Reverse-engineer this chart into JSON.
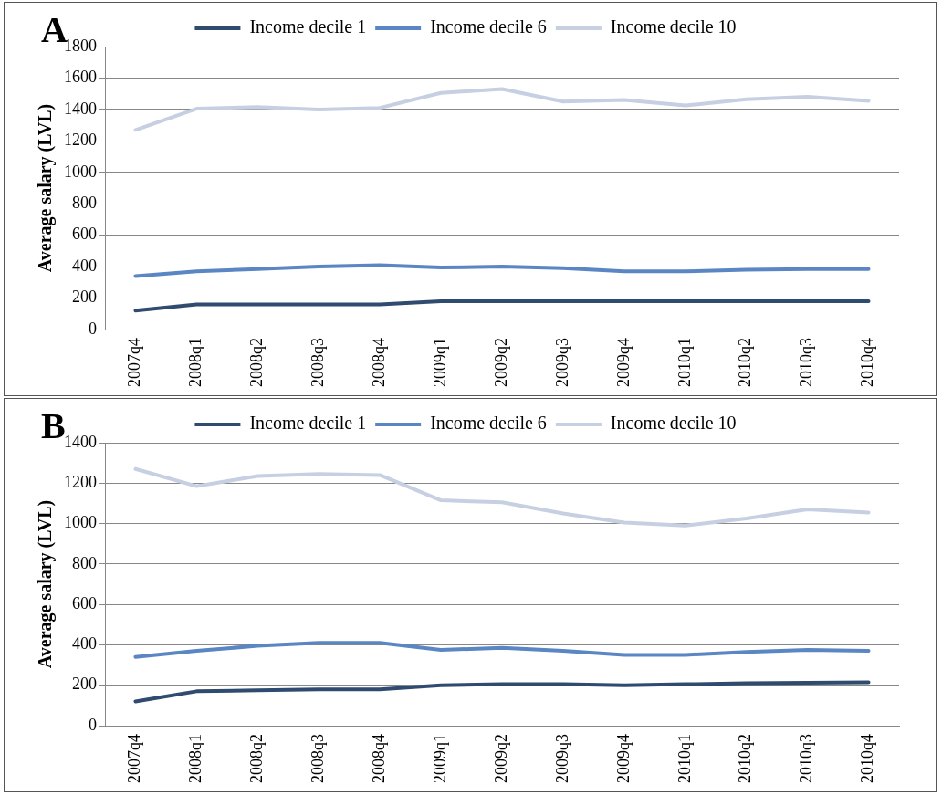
{
  "chart_data": [
    {
      "type": "line",
      "title": "A",
      "ylabel": "Average salary (LVL)",
      "categories": [
        "2007q4",
        "2008q1",
        "2008q2",
        "2008q3",
        "2008q4",
        "2009q1",
        "2009q2",
        "2009q3",
        "2009q4",
        "2010q1",
        "2010q2",
        "2010q3",
        "2010q4"
      ],
      "series": [
        {
          "name": "Income decile 1",
          "color": "#2f4b70",
          "values": [
            120,
            160,
            160,
            160,
            160,
            180,
            180,
            180,
            180,
            180,
            180,
            180,
            180
          ]
        },
        {
          "name": "Income decile 6",
          "color": "#5b86c4",
          "values": [
            340,
            370,
            385,
            400,
            410,
            395,
            400,
            390,
            370,
            370,
            380,
            385,
            385
          ]
        },
        {
          "name": "Income decile 10",
          "color": "#c6d0e2",
          "values": [
            1270,
            1405,
            1415,
            1400,
            1410,
            1505,
            1530,
            1450,
            1460,
            1425,
            1465,
            1480,
            1455
          ]
        }
      ],
      "ylim": [
        0,
        1800
      ],
      "yticks": [
        0,
        200,
        400,
        600,
        800,
        1000,
        1200,
        1400,
        1600,
        1800
      ],
      "grid": "y",
      "legend": "top",
      "marker": "none",
      "line_style": "solid"
    },
    {
      "type": "line",
      "title": "B",
      "ylabel": "Average salary (LVL)",
      "categories": [
        "2007q4",
        "2008q1",
        "2008q2",
        "2008q3",
        "2008q4",
        "2009q1",
        "2009q2",
        "2009q3",
        "2009q4",
        "2010q1",
        "2010q2",
        "2010q3",
        "2010q4"
      ],
      "series": [
        {
          "name": "Income decile 1",
          "color": "#2f4b70",
          "values": [
            120,
            170,
            175,
            180,
            180,
            200,
            205,
            205,
            200,
            205,
            210,
            212,
            215
          ]
        },
        {
          "name": "Income decile 6",
          "color": "#5b86c4",
          "values": [
            340,
            370,
            395,
            410,
            410,
            375,
            385,
            370,
            350,
            350,
            365,
            375,
            370
          ]
        },
        {
          "name": "Income decile 10",
          "color": "#c6d0e2",
          "values": [
            1270,
            1185,
            1235,
            1245,
            1240,
            1115,
            1105,
            1050,
            1005,
            990,
            1025,
            1070,
            1055
          ]
        }
      ],
      "ylim": [
        0,
        1400
      ],
      "yticks": [
        0,
        200,
        400,
        600,
        800,
        1000,
        1200,
        1400
      ],
      "grid": "y",
      "legend": "top",
      "marker": "none",
      "line_style": "solid"
    }
  ]
}
